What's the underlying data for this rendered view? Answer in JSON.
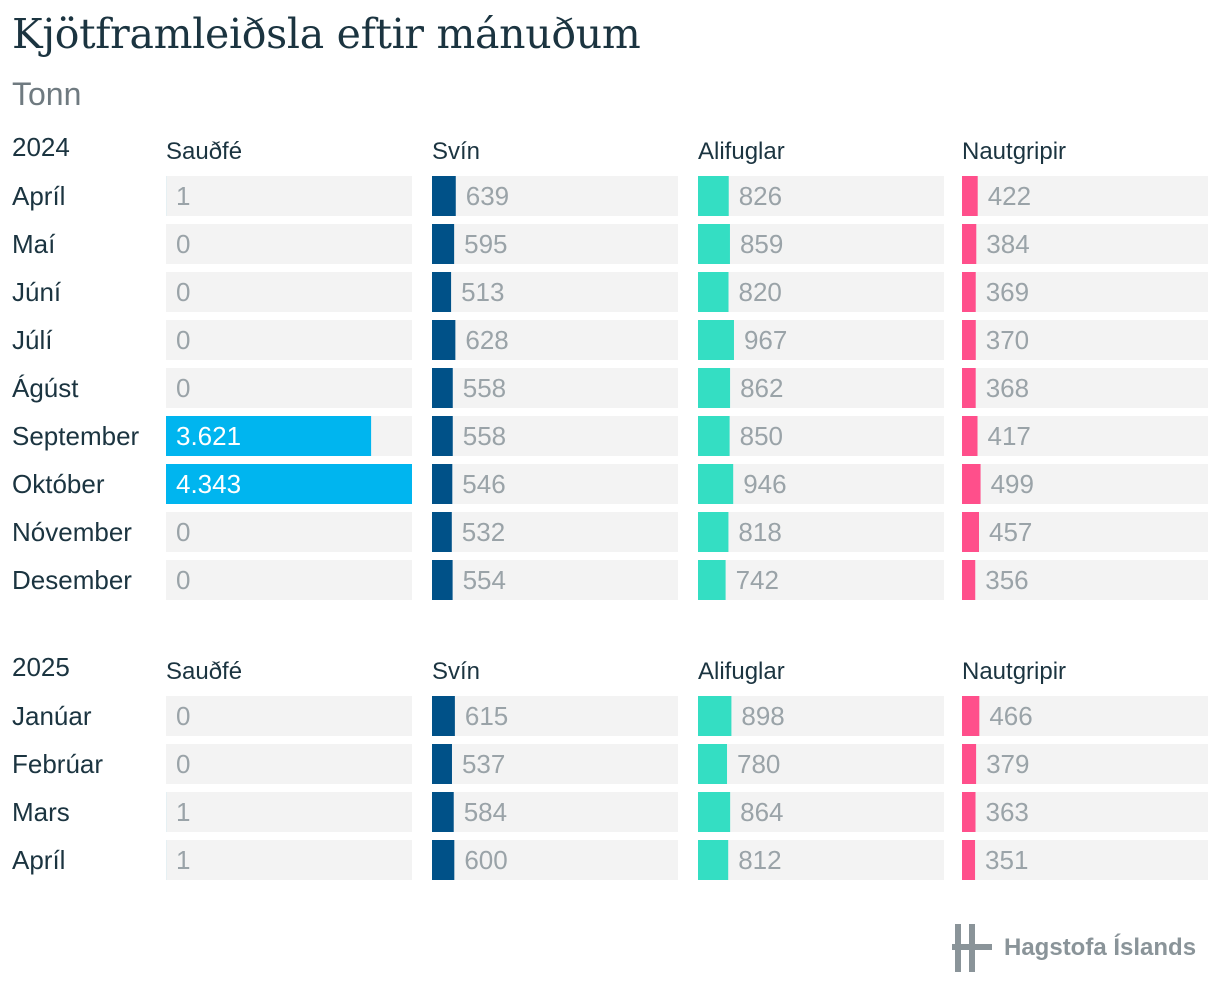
{
  "title": "Kjötframleiðsla eftir mánuðum",
  "subtitle": "Tonn",
  "logo_text": "Hagstofa Íslands",
  "colors": {
    "Sauðfé": "#00b5ef",
    "Svín": "#005188",
    "Alifuglar": "#34dec3",
    "Nautgripir": "#ff4f8b",
    "track": "#f3f3f3"
  },
  "chart_data": {
    "type": "bar",
    "orientation": "horizontal",
    "layout": "small-multiples",
    "series_names": [
      "Sauðfé",
      "Svín",
      "Alifuglar",
      "Nautgripir"
    ],
    "groups": [
      {
        "year": "2024",
        "months": [
          "Apríl",
          "Maí",
          "Júní",
          "Júlí",
          "Ágúst",
          "September",
          "Október",
          "Nóvember",
          "Desember"
        ],
        "series": [
          {
            "name": "Sauðfé",
            "values": [
              1,
              0,
              0,
              0,
              0,
              3621,
              4343,
              0,
              0
            ],
            "labels": [
              "1",
              "0",
              "0",
              "0",
              "0",
              "3.621",
              "4.343",
              "0",
              "0"
            ]
          },
          {
            "name": "Svín",
            "values": [
              639,
              595,
              513,
              628,
              558,
              558,
              546,
              532,
              554
            ],
            "labels": [
              "639",
              "595",
              "513",
              "628",
              "558",
              "558",
              "546",
              "532",
              "554"
            ]
          },
          {
            "name": "Alifuglar",
            "values": [
              826,
              859,
              820,
              967,
              862,
              850,
              946,
              818,
              742
            ],
            "labels": [
              "826",
              "859",
              "820",
              "967",
              "862",
              "850",
              "946",
              "818",
              "742"
            ]
          },
          {
            "name": "Nautgripir",
            "values": [
              422,
              384,
              369,
              370,
              368,
              417,
              499,
              457,
              356
            ],
            "labels": [
              "422",
              "384",
              "369",
              "370",
              "368",
              "417",
              "499",
              "457",
              "356"
            ]
          }
        ]
      },
      {
        "year": "2025",
        "months": [
          "Janúar",
          "Febrúar",
          "Mars",
          "Apríl"
        ],
        "series": [
          {
            "name": "Sauðfé",
            "values": [
              0,
              0,
              1,
              1
            ],
            "labels": [
              "0",
              "0",
              "1",
              "1"
            ]
          },
          {
            "name": "Svín",
            "values": [
              615,
              537,
              584,
              600
            ],
            "labels": [
              "615",
              "537",
              "584",
              "600"
            ]
          },
          {
            "name": "Alifuglar",
            "values": [
              898,
              780,
              864,
              812
            ],
            "labels": [
              "898",
              "780",
              "864",
              "812"
            ]
          },
          {
            "name": "Nautgripir",
            "values": [
              466,
              379,
              363,
              351
            ],
            "labels": [
              "466",
              "379",
              "363",
              "351"
            ]
          }
        ]
      }
    ],
    "xmax": 4343
  }
}
